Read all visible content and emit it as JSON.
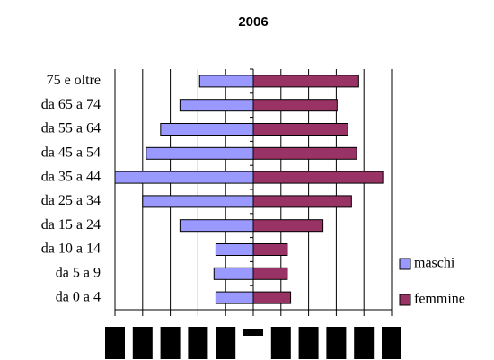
{
  "chart_data": {
    "type": "pyramid",
    "title": "2006",
    "categories": [
      "75 e oltre",
      "da 65 a 74",
      "da 55 a 64",
      "da 45 a 54",
      "da 35 a 44",
      "da 25 a 34",
      "da 15 a 24",
      "da 10 a 14",
      "da 5 a 9",
      "da 0 a 4"
    ],
    "series": [
      {
        "name": "maschi",
        "color": "#9999ff",
        "values": [
          -1.94,
          -2.65,
          -3.35,
          -3.87,
          -5.0,
          -4.0,
          -2.65,
          -1.35,
          -1.42,
          -1.35
        ]
      },
      {
        "name": "femmine",
        "color": "#993366",
        "values": [
          3.81,
          3.03,
          3.42,
          3.74,
          4.68,
          3.55,
          2.52,
          1.23,
          1.23,
          1.35
        ]
      }
    ],
    "xlim": [
      -5,
      5
    ],
    "xticks": [
      -5,
      -4,
      -3,
      -2,
      -1,
      0,
      1,
      2,
      3,
      4,
      5
    ],
    "grid": true,
    "legend": "right"
  }
}
